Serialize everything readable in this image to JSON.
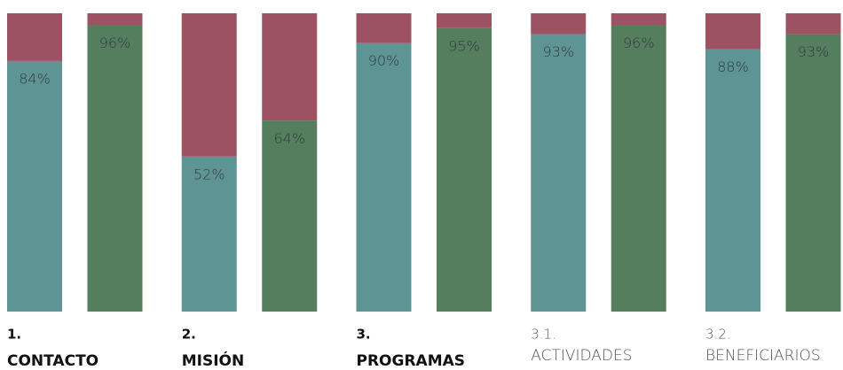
{
  "chart_data": {
    "type": "stacked-bar",
    "ylim": [
      0,
      100
    ],
    "colors": [
      "#5f9494",
      "#557e5f"
    ],
    "rest_color": "#9d5264",
    "groups": [
      {
        "number": "1.",
        "name": "CONTACTO",
        "bold": true,
        "bars": [
          {
            "value": 84,
            "rest": 16,
            "value_label": "84%"
          },
          {
            "value": 96,
            "rest": 4,
            "value_label": "96%"
          }
        ]
      },
      {
        "number": "2.",
        "name": "MISIÓN",
        "bold": true,
        "bars": [
          {
            "value": 52,
            "rest": 48,
            "value_label": "52%"
          },
          {
            "value": 64,
            "rest": 36,
            "value_label": "64%"
          }
        ]
      },
      {
        "number": "3.",
        "name": "PROGRAMAS",
        "bold": true,
        "bars": [
          {
            "value": 90,
            "rest": 10,
            "value_label": "90%"
          },
          {
            "value": 95,
            "rest": 5,
            "value_label": "95%"
          }
        ]
      },
      {
        "number": "3.1.",
        "name": "ACTIVIDADES",
        "bold": false,
        "bars": [
          {
            "value": 93,
            "rest": 7,
            "value_label": "93%"
          },
          {
            "value": 96,
            "rest": 4,
            "value_label": "96%"
          }
        ]
      },
      {
        "number": "3.2.",
        "name": "BENEFICIARIOS",
        "bold": false,
        "bars": [
          {
            "value": 88,
            "rest": 12,
            "value_label": "88%"
          },
          {
            "value": 93,
            "rest": 7,
            "value_label": "93%"
          }
        ]
      }
    ]
  }
}
